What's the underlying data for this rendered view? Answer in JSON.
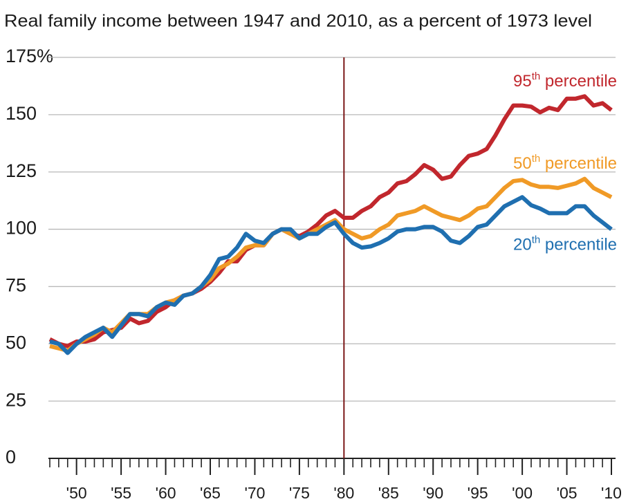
{
  "chart_data": {
    "type": "line",
    "title": "Real family income between 1947 and 2010, as a percent of 1973 level",
    "x": [
      1947,
      1948,
      1949,
      1950,
      1951,
      1952,
      1953,
      1954,
      1955,
      1956,
      1957,
      1958,
      1959,
      1960,
      1961,
      1962,
      1963,
      1964,
      1965,
      1966,
      1967,
      1968,
      1969,
      1970,
      1971,
      1972,
      1973,
      1974,
      1975,
      1976,
      1977,
      1978,
      1979,
      1980,
      1981,
      1982,
      1983,
      1984,
      1985,
      1986,
      1987,
      1988,
      1989,
      1990,
      1991,
      1992,
      1993,
      1994,
      1995,
      1996,
      1997,
      1998,
      1999,
      2000,
      2001,
      2002,
      2003,
      2004,
      2005,
      2006,
      2007,
      2008,
      2009,
      2010
    ],
    "series": [
      {
        "name": "95th percentile",
        "color": "#c1272d",
        "values": [
          52,
          50,
          49,
          51,
          51,
          52,
          55,
          56,
          57,
          61,
          59,
          60,
          64,
          66,
          69,
          71,
          72,
          74,
          77,
          81,
          86,
          86,
          91,
          93,
          93,
          98,
          100,
          98,
          97,
          99,
          102,
          106,
          108,
          105,
          105,
          108,
          110,
          114,
          116,
          120,
          121,
          124,
          128,
          126,
          122,
          123,
          128,
          132,
          133,
          135,
          141,
          148,
          154,
          154,
          153.5,
          151,
          153,
          152,
          157,
          157,
          158,
          154,
          155,
          152
        ]
      },
      {
        "name": "50th percentile",
        "color": "#f09a26",
        "values": [
          49,
          48,
          47,
          50,
          52,
          54,
          57,
          55,
          59,
          63,
          63,
          63,
          66,
          68,
          69,
          71,
          72,
          75,
          78,
          83,
          85,
          88,
          92,
          93,
          93,
          98,
          100,
          98,
          96,
          98,
          100,
          102,
          104,
          100,
          98,
          96,
          97,
          100,
          102,
          106,
          107,
          108,
          110,
          108,
          106,
          105,
          104,
          106,
          109,
          110,
          114,
          118,
          121,
          121.5,
          119.5,
          118.5,
          118.5,
          118,
          119,
          120,
          122,
          118,
          116,
          114
        ]
      },
      {
        "name": "20th percentile",
        "color": "#1f6fb0",
        "values": [
          51,
          50,
          46,
          50,
          53,
          55,
          57,
          53,
          58,
          63,
          63,
          62,
          66,
          68,
          67,
          71,
          72,
          75,
          80,
          87,
          88,
          92,
          98,
          95,
          94,
          98,
          100,
          100,
          96,
          98,
          98,
          101,
          103,
          98,
          94,
          92,
          92.5,
          94,
          96,
          99,
          100,
          100,
          101,
          101,
          99,
          95,
          94,
          97,
          101,
          102,
          106,
          110,
          112,
          114,
          110.5,
          109,
          107,
          107,
          107,
          110,
          110,
          106,
          103,
          100
        ]
      }
    ],
    "xlim": [
      1947,
      2010
    ],
    "xticks": [
      {
        "value": 1950,
        "label": "'50"
      },
      {
        "value": 1955,
        "label": "'55"
      },
      {
        "value": 1960,
        "label": "'60"
      },
      {
        "value": 1965,
        "label": "'65"
      },
      {
        "value": 1970,
        "label": "'70"
      },
      {
        "value": 1975,
        "label": "'75"
      },
      {
        "value": 1980,
        "label": "'80"
      },
      {
        "value": 1985,
        "label": "'85"
      },
      {
        "value": 1990,
        "label": "'90"
      },
      {
        "value": 1995,
        "label": "'95"
      },
      {
        "value": 2000,
        "label": "'00"
      },
      {
        "value": 2005,
        "label": "'05"
      },
      {
        "value": 2010,
        "label": "'10"
      }
    ],
    "ylim": [
      0,
      175
    ],
    "yticks": [
      0,
      25,
      50,
      75,
      100,
      125,
      150,
      {
        "value": 175,
        "label": "175%"
      }
    ],
    "grid": true,
    "vline": 1980
  }
}
